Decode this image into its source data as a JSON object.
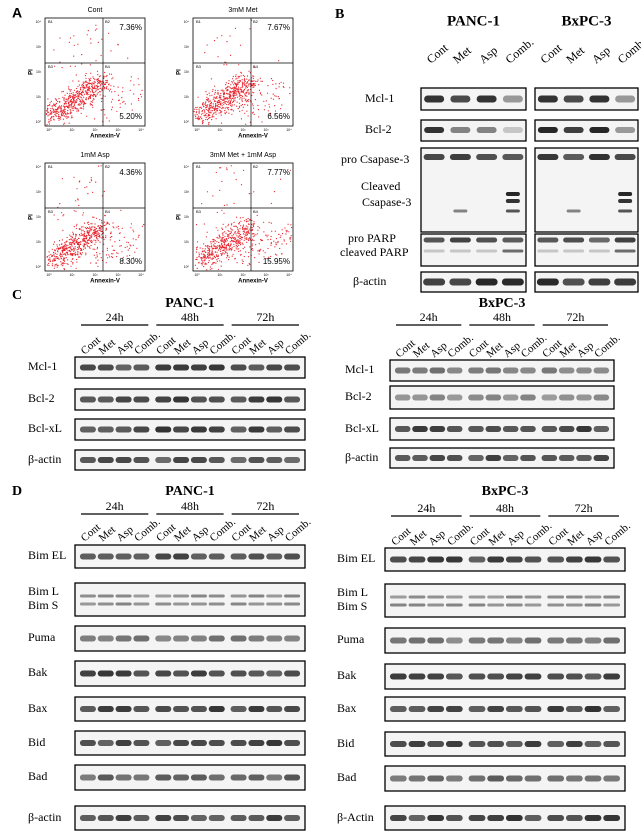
{
  "panel_a": {
    "label": "A",
    "y_axis": "PI",
    "x_axis": "Annexin-V",
    "quadrants": [
      "B1",
      "B2",
      "B3",
      "B4"
    ],
    "axis_ticks": [
      "10⁰",
      "10¹",
      "10²",
      "10³",
      "10⁴"
    ],
    "plots": [
      {
        "title": "Cont",
        "upper_right": "7.36%",
        "lower_right": "5.20%"
      },
      {
        "title": "3mM Met",
        "upper_right": "7.67%",
        "lower_right": "6.56%"
      },
      {
        "title": "1mM Asp",
        "upper_right": "4.36%",
        "lower_right": "8.30%"
      },
      {
        "title": "3mM Met + 1mM Asp",
        "upper_right": "7.77%",
        "lower_right": "15.95%"
      }
    ]
  },
  "panel_b": {
    "label": "B",
    "blots": [
      {
        "cell_line": "PANC-1",
        "lanes": [
          "Cont",
          "Met",
          "Asp",
          "Comb."
        ]
      },
      {
        "cell_line": "BxPC-3",
        "lanes": [
          "Cont",
          "Met",
          "Asp",
          "Comb"
        ]
      }
    ],
    "rows": [
      "Mcl-1",
      "Bcl-2",
      "pro Csapase-3",
      "Cleaved",
      "Csapase-3",
      "pro PARP",
      "cleaved PARP",
      "β-actin"
    ]
  },
  "panel_c": {
    "label": "C",
    "times": [
      "24h",
      "48h",
      "72h"
    ],
    "lanes": [
      "Cont",
      "Met",
      "Asp",
      "Comb."
    ],
    "blots": [
      {
        "cell_line": "PANC-1",
        "rows": [
          "Mcl-1",
          "Bcl-2",
          "Bcl-xL",
          "β-actin"
        ]
      },
      {
        "cell_line": "BxPC-3",
        "rows": [
          "Mcl-1",
          "Bcl-2",
          "Bcl-xL",
          "β-actin"
        ]
      }
    ]
  },
  "panel_d": {
    "label": "D",
    "times": [
      "24h",
      "48h",
      "72h"
    ],
    "lanes": [
      "Cont",
      "Met",
      "Asp",
      "Comb."
    ],
    "blots": [
      {
        "cell_line": "PANC-1",
        "rows": [
          "Bim EL",
          "Bim L",
          "Bim S",
          "Puma",
          "Bak",
          "Bax",
          "Bid",
          "Bad",
          "β-actin"
        ]
      },
      {
        "cell_line": "BxPC-3",
        "rows": [
          "Bim EL",
          "Bim L",
          "Bim S",
          "Puma",
          "Bak",
          "Bax",
          "Bid",
          "Bad",
          "β-Actin"
        ]
      }
    ]
  }
}
